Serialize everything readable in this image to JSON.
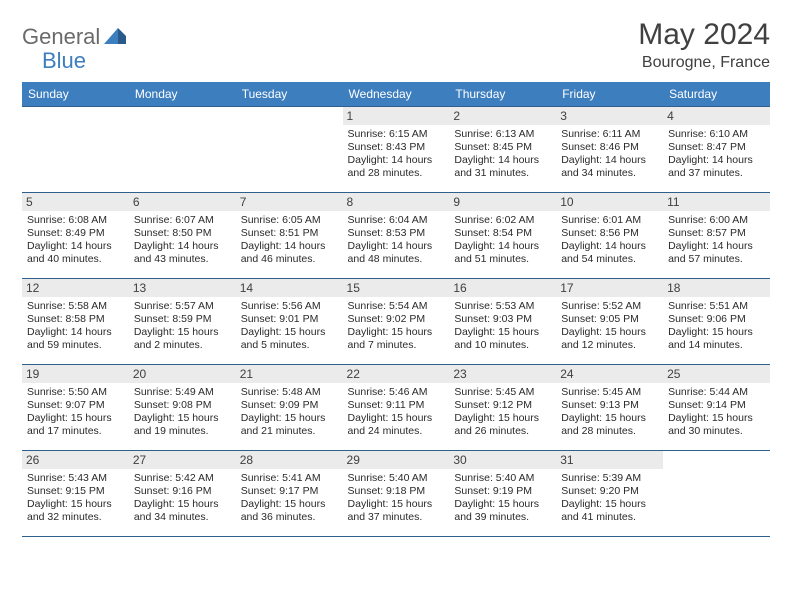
{
  "brand": {
    "part1": "General",
    "part2": "Blue"
  },
  "title": "May 2024",
  "location": "Bourogne, France",
  "colors": {
    "header_bg": "#3d7ebf",
    "header_text": "#ffffff",
    "border": "#2f5f8f",
    "daynum_bg": "#ebebeb",
    "text": "#2a2a2a",
    "logo_gray": "#6b6b6b",
    "logo_blue": "#3d7ebf"
  },
  "day_names": [
    "Sunday",
    "Monday",
    "Tuesday",
    "Wednesday",
    "Thursday",
    "Friday",
    "Saturday"
  ],
  "weeks": [
    [
      null,
      null,
      null,
      {
        "n": "1",
        "sr": "6:15 AM",
        "ss": "8:43 PM",
        "d1": "14 hours",
        "d2": "28 minutes."
      },
      {
        "n": "2",
        "sr": "6:13 AM",
        "ss": "8:45 PM",
        "d1": "14 hours",
        "d2": "31 minutes."
      },
      {
        "n": "3",
        "sr": "6:11 AM",
        "ss": "8:46 PM",
        "d1": "14 hours",
        "d2": "34 minutes."
      },
      {
        "n": "4",
        "sr": "6:10 AM",
        "ss": "8:47 PM",
        "d1": "14 hours",
        "d2": "37 minutes."
      }
    ],
    [
      {
        "n": "5",
        "sr": "6:08 AM",
        "ss": "8:49 PM",
        "d1": "14 hours",
        "d2": "40 minutes."
      },
      {
        "n": "6",
        "sr": "6:07 AM",
        "ss": "8:50 PM",
        "d1": "14 hours",
        "d2": "43 minutes."
      },
      {
        "n": "7",
        "sr": "6:05 AM",
        "ss": "8:51 PM",
        "d1": "14 hours",
        "d2": "46 minutes."
      },
      {
        "n": "8",
        "sr": "6:04 AM",
        "ss": "8:53 PM",
        "d1": "14 hours",
        "d2": "48 minutes."
      },
      {
        "n": "9",
        "sr": "6:02 AM",
        "ss": "8:54 PM",
        "d1": "14 hours",
        "d2": "51 minutes."
      },
      {
        "n": "10",
        "sr": "6:01 AM",
        "ss": "8:56 PM",
        "d1": "14 hours",
        "d2": "54 minutes."
      },
      {
        "n": "11",
        "sr": "6:00 AM",
        "ss": "8:57 PM",
        "d1": "14 hours",
        "d2": "57 minutes."
      }
    ],
    [
      {
        "n": "12",
        "sr": "5:58 AM",
        "ss": "8:58 PM",
        "d1": "14 hours",
        "d2": "59 minutes."
      },
      {
        "n": "13",
        "sr": "5:57 AM",
        "ss": "8:59 PM",
        "d1": "15 hours",
        "d2": "2 minutes."
      },
      {
        "n": "14",
        "sr": "5:56 AM",
        "ss": "9:01 PM",
        "d1": "15 hours",
        "d2": "5 minutes."
      },
      {
        "n": "15",
        "sr": "5:54 AM",
        "ss": "9:02 PM",
        "d1": "15 hours",
        "d2": "7 minutes."
      },
      {
        "n": "16",
        "sr": "5:53 AM",
        "ss": "9:03 PM",
        "d1": "15 hours",
        "d2": "10 minutes."
      },
      {
        "n": "17",
        "sr": "5:52 AM",
        "ss": "9:05 PM",
        "d1": "15 hours",
        "d2": "12 minutes."
      },
      {
        "n": "18",
        "sr": "5:51 AM",
        "ss": "9:06 PM",
        "d1": "15 hours",
        "d2": "14 minutes."
      }
    ],
    [
      {
        "n": "19",
        "sr": "5:50 AM",
        "ss": "9:07 PM",
        "d1": "15 hours",
        "d2": "17 minutes."
      },
      {
        "n": "20",
        "sr": "5:49 AM",
        "ss": "9:08 PM",
        "d1": "15 hours",
        "d2": "19 minutes."
      },
      {
        "n": "21",
        "sr": "5:48 AM",
        "ss": "9:09 PM",
        "d1": "15 hours",
        "d2": "21 minutes."
      },
      {
        "n": "22",
        "sr": "5:46 AM",
        "ss": "9:11 PM",
        "d1": "15 hours",
        "d2": "24 minutes."
      },
      {
        "n": "23",
        "sr": "5:45 AM",
        "ss": "9:12 PM",
        "d1": "15 hours",
        "d2": "26 minutes."
      },
      {
        "n": "24",
        "sr": "5:45 AM",
        "ss": "9:13 PM",
        "d1": "15 hours",
        "d2": "28 minutes."
      },
      {
        "n": "25",
        "sr": "5:44 AM",
        "ss": "9:14 PM",
        "d1": "15 hours",
        "d2": "30 minutes."
      }
    ],
    [
      {
        "n": "26",
        "sr": "5:43 AM",
        "ss": "9:15 PM",
        "d1": "15 hours",
        "d2": "32 minutes."
      },
      {
        "n": "27",
        "sr": "5:42 AM",
        "ss": "9:16 PM",
        "d1": "15 hours",
        "d2": "34 minutes."
      },
      {
        "n": "28",
        "sr": "5:41 AM",
        "ss": "9:17 PM",
        "d1": "15 hours",
        "d2": "36 minutes."
      },
      {
        "n": "29",
        "sr": "5:40 AM",
        "ss": "9:18 PM",
        "d1": "15 hours",
        "d2": "37 minutes."
      },
      {
        "n": "30",
        "sr": "5:40 AM",
        "ss": "9:19 PM",
        "d1": "15 hours",
        "d2": "39 minutes."
      },
      {
        "n": "31",
        "sr": "5:39 AM",
        "ss": "9:20 PM",
        "d1": "15 hours",
        "d2": "41 minutes."
      },
      null
    ]
  ],
  "labels": {
    "sunrise": "Sunrise:",
    "sunset": "Sunset:",
    "daylight": "Daylight:",
    "and": "and"
  }
}
